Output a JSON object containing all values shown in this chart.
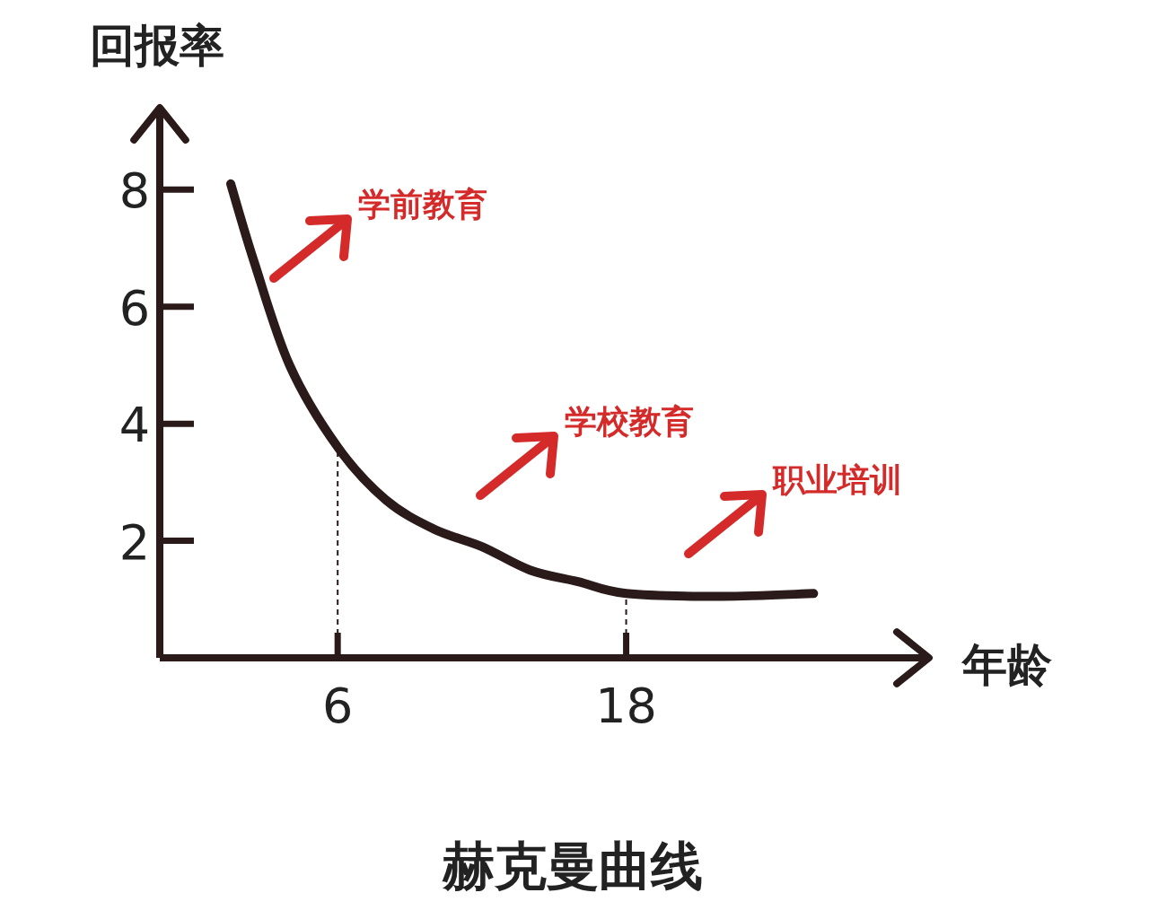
{
  "chart_data": {
    "type": "line",
    "title": "赫克曼曲线",
    "xlabel": "年龄",
    "ylabel": "回报率",
    "xlim": [
      -1.4,
      30.6
    ],
    "ylim": [
      0,
      9.4
    ],
    "xticks": [
      6,
      18
    ],
    "yticks": [
      2,
      4,
      6,
      8
    ],
    "marker": "none",
    "line_style": "solid",
    "series": [
      {
        "color": "#2b1a1a",
        "x": [
          1.55,
          2.5,
          4,
          6,
          8,
          10,
          12,
          14,
          16,
          18,
          22,
          25.8
        ],
        "values": [
          8.1,
          6.8,
          5.0,
          3.6,
          2.7,
          2.2,
          1.9,
          1.5,
          1.3,
          1.1,
          1.05,
          1.1
        ]
      }
    ],
    "ref_lines": [
      {
        "axis": "x",
        "value": 6,
        "line_style": "dashed",
        "color": "#2b1a1a"
      },
      {
        "axis": "x",
        "value": 18,
        "line_style": "dashed",
        "color": "#2b1a1a"
      }
    ],
    "annotations": [
      "学前教育",
      "学校教育",
      "职业培训"
    ]
  }
}
